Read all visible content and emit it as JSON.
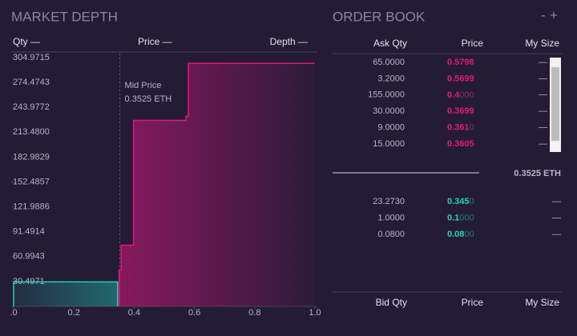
{
  "chart_data": {
    "type": "depth",
    "title": "MARKET DEPTH",
    "columns": [
      "Qty —",
      "Price —",
      "Depth —"
    ],
    "xlim": [
      0,
      1
    ],
    "xticks": [
      {
        "value": 0,
        "label": ".0"
      },
      0.2,
      0.4,
      0.6,
      0.8,
      {
        "value": 1,
        "label": "1.0"
      }
    ],
    "ylim": [
      0,
      304.9715
    ],
    "yticks": [
      30.4971,
      60.9943,
      91.4914,
      121.9886,
      152.4857,
      182.9829,
      {
        "value": 213.48,
        "label": "213.4800"
      },
      243.9772,
      274.4743,
      304.9715
    ],
    "annotation": {
      "x": 0.3525,
      "text": [
        "Mid Price",
        "0.3525 ETH"
      ]
    },
    "series": [
      {
        "color": "#22d3bb",
        "x": [
          0,
          0.345
        ],
        "values": [
          30,
          30
        ]
      },
      {
        "color": "#e3177f",
        "x": [
          0.35,
          0.357,
          0.398,
          0.572,
          0.58,
          1
        ],
        "values": [
          45,
          75,
          228,
          233,
          298,
          298
        ]
      }
    ]
  },
  "order_book": {
    "title": "ORDER BOOK",
    "controls": [
      "-",
      "+"
    ],
    "header": [
      "Ask Qty",
      "Price",
      "My Size"
    ],
    "asks": [
      {
        "qty": "65.0000",
        "price": [
          "0.5798"
        ],
        "my_size": "—"
      },
      {
        "qty": "3.2000",
        "price": [
          "0.5699"
        ],
        "my_size": "—"
      },
      {
        "qty": "155.0000",
        "price": [
          "0.4",
          "000"
        ],
        "my_size": "—"
      },
      {
        "qty": "30.0000",
        "price": [
          "0.3699"
        ],
        "my_size": "—"
      },
      {
        "qty": "9.0000",
        "price": [
          "0.361",
          "0"
        ],
        "my_size": "—"
      },
      {
        "qty": "15.0000",
        "price": [
          "0.3605"
        ],
        "my_size": "—"
      }
    ],
    "mid": "0.3525 ETH",
    "bids": [
      {
        "qty": "23.2730",
        "price": [
          "0.345",
          "0"
        ],
        "my_size": "—"
      },
      {
        "qty": "1.0000",
        "price": [
          "0.1",
          "000"
        ],
        "my_size": "—"
      },
      {
        "qty": "0.0800",
        "price": [
          "0.08",
          "00"
        ],
        "my_size": "—"
      }
    ],
    "footer": [
      "Bid Qty",
      "Price",
      "My Size"
    ]
  }
}
